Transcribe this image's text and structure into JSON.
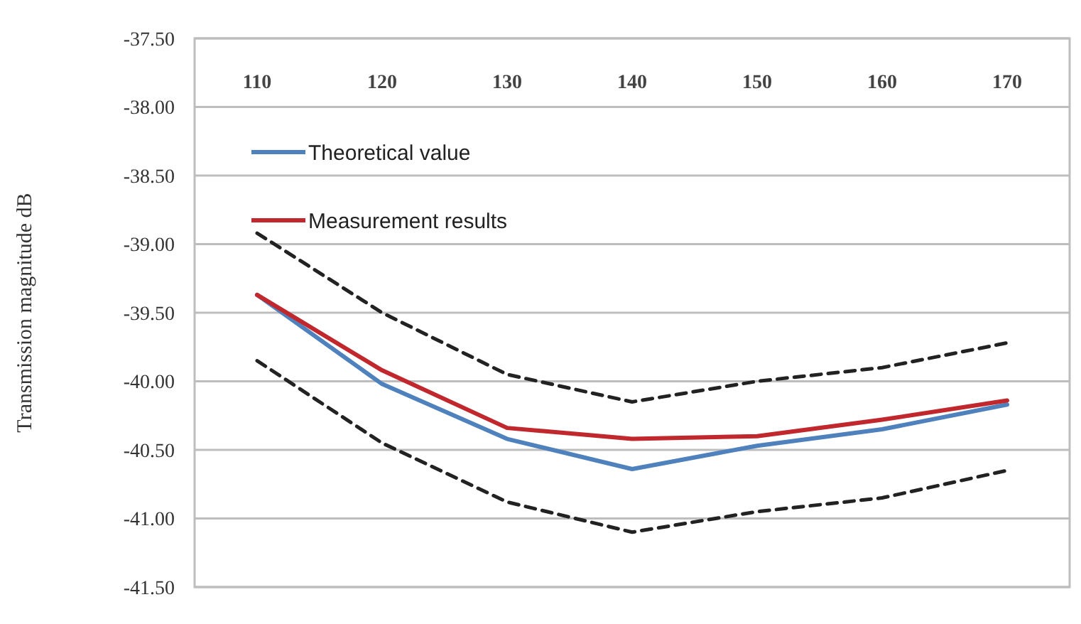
{
  "chart_data": {
    "type": "line",
    "ylabel": "Transmission magnitude dB",
    "categories": [
      "110",
      "120",
      "130",
      "140",
      "150",
      "160",
      "170"
    ],
    "ylim": [
      -41.5,
      -37.5
    ],
    "yticks": [
      {
        "value": -41.5,
        "label": "-41.50"
      },
      {
        "value": -41,
        "label": "-41.00"
      },
      {
        "value": -40.5,
        "label": "-40.50"
      },
      {
        "value": -40,
        "label": "-40.00"
      },
      {
        "value": -39.5,
        "label": "-39.50"
      },
      {
        "value": -39,
        "label": "-39.00"
      },
      {
        "value": -38.5,
        "label": "-38.50"
      },
      {
        "value": -38,
        "label": "-38.00"
      },
      {
        "value": -37.5,
        "label": "-37.50"
      }
    ],
    "grid": "y",
    "legend": "top left",
    "marker": "none",
    "series": [
      {
        "name": "Theoretical value",
        "color": "#4f81bd",
        "line_style": "solid",
        "values": [
          -39.37,
          -40.02,
          -40.42,
          -40.64,
          -40.47,
          -40.35,
          -40.17
        ]
      },
      {
        "name": "Measurement results",
        "color": "#c0282d",
        "line_style": "solid",
        "values": [
          -39.37,
          -39.92,
          -40.34,
          -40.42,
          -40.4,
          -40.28,
          -40.14
        ]
      },
      {
        "color": "#222222",
        "line_style": "dashed",
        "values": [
          -38.92,
          -39.5,
          -39.95,
          -40.15,
          -40.0,
          -39.9,
          -39.72
        ]
      },
      {
        "color": "#222222",
        "line_style": "dashed",
        "values": [
          -39.85,
          -40.45,
          -40.88,
          -41.1,
          -40.95,
          -40.85,
          -40.65
        ]
      }
    ]
  }
}
